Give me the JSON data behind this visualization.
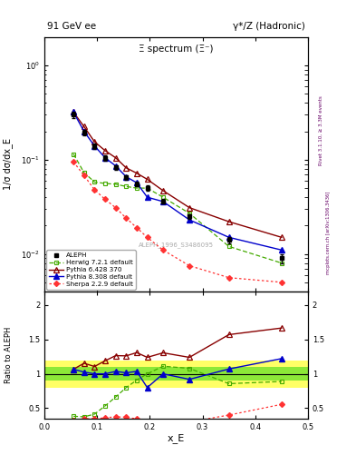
{
  "title_left": "91 GeV ee",
  "title_right": "γ*/Z (Hadronic)",
  "plot_title": "Ξ spectrum (Ξ⁻)",
  "ylabel_main": "1/σ dσ/dx_E",
  "ylabel_ratio": "Ratio to ALEPH",
  "xlabel": "x_E",
  "watermark": "ALEPH_1996_S3486095",
  "rivet_label": "Rivet 3.1.10, ≥ 3.3M events",
  "mcplots_label": "mcplots.cern.ch [arXiv:1306.3436]",
  "aleph_x": [
    0.055,
    0.075,
    0.095,
    0.115,
    0.135,
    0.155,
    0.175,
    0.195,
    0.225,
    0.275,
    0.35,
    0.45
  ],
  "aleph_y": [
    0.3,
    0.195,
    0.14,
    0.105,
    0.083,
    0.065,
    0.055,
    0.05,
    0.036,
    0.025,
    0.014,
    0.009
  ],
  "aleph_yerr_lo": [
    0.025,
    0.012,
    0.009,
    0.007,
    0.005,
    0.004,
    0.003,
    0.003,
    0.002,
    0.0015,
    0.001,
    0.001
  ],
  "aleph_yerr_hi": [
    0.025,
    0.012,
    0.009,
    0.007,
    0.005,
    0.004,
    0.003,
    0.003,
    0.002,
    0.0015,
    0.001,
    0.001
  ],
  "herwig_x": [
    0.055,
    0.075,
    0.095,
    0.115,
    0.135,
    0.155,
    0.175,
    0.195,
    0.225,
    0.275,
    0.35,
    0.45
  ],
  "herwig_y": [
    0.115,
    0.073,
    0.058,
    0.056,
    0.055,
    0.052,
    0.05,
    0.05,
    0.04,
    0.027,
    0.012,
    0.008
  ],
  "pythia6_x": [
    0.055,
    0.075,
    0.095,
    0.115,
    0.135,
    0.155,
    0.175,
    0.195,
    0.225,
    0.275,
    0.35,
    0.45
  ],
  "pythia6_y": [
    0.32,
    0.225,
    0.155,
    0.125,
    0.105,
    0.082,
    0.072,
    0.062,
    0.047,
    0.031,
    0.022,
    0.015
  ],
  "pythia8_x": [
    0.055,
    0.075,
    0.095,
    0.115,
    0.135,
    0.155,
    0.175,
    0.195,
    0.225,
    0.275,
    0.35,
    0.45
  ],
  "pythia8_y": [
    0.32,
    0.2,
    0.14,
    0.105,
    0.086,
    0.066,
    0.057,
    0.04,
    0.036,
    0.023,
    0.015,
    0.011
  ],
  "sherpa_x": [
    0.055,
    0.075,
    0.095,
    0.115,
    0.135,
    0.155,
    0.175,
    0.195,
    0.225,
    0.275,
    0.35,
    0.45
  ],
  "sherpa_y": [
    0.095,
    0.068,
    0.048,
    0.038,
    0.031,
    0.024,
    0.019,
    0.015,
    0.011,
    0.0075,
    0.0056,
    0.005
  ],
  "herwig_ratio": [
    0.383,
    0.374,
    0.414,
    0.533,
    0.663,
    0.8,
    0.909,
    1.0,
    1.111,
    1.08,
    0.857,
    0.889
  ],
  "pythia6_ratio": [
    1.067,
    1.154,
    1.107,
    1.19,
    1.265,
    1.262,
    1.309,
    1.24,
    1.306,
    1.24,
    1.571,
    1.667
  ],
  "pythia8_ratio": [
    1.067,
    1.026,
    1.0,
    1.0,
    1.036,
    1.015,
    1.036,
    0.8,
    1.0,
    0.92,
    1.071,
    1.222
  ],
  "sherpa_ratio": [
    0.317,
    0.349,
    0.343,
    0.362,
    0.373,
    0.369,
    0.345,
    0.3,
    0.306,
    0.3,
    0.4,
    0.556
  ],
  "band_green_lo": 0.9,
  "band_green_hi": 1.1,
  "band_yellow_lo": 0.8,
  "band_yellow_hi": 1.2,
  "band1_xlo": 0.0,
  "band1_xhi": 0.32,
  "band2_xlo": 0.32,
  "band2_xhi": 0.5,
  "color_aleph": "#000000",
  "color_herwig": "#44aa00",
  "color_pythia6": "#880000",
  "color_pythia8": "#0000cc",
  "color_sherpa": "#ff3333",
  "ylim_main": [
    0.004,
    2.0
  ],
  "ylim_ratio": [
    0.35,
    2.2
  ],
  "xlim": [
    0.0,
    0.5
  ]
}
